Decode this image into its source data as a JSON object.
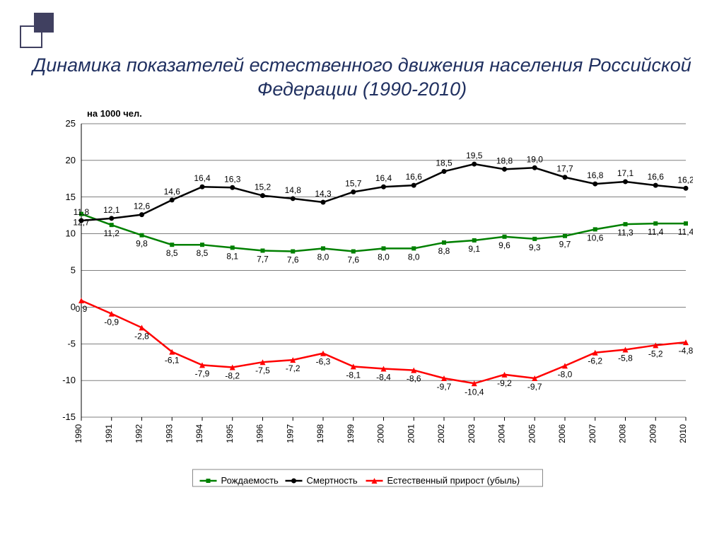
{
  "title": "Динамика показателей естественного движения населения Российской Федерации (1990-2010)",
  "chart": {
    "type": "line",
    "ylabel": "на 1000 чел.",
    "ylim": [
      -15,
      25
    ],
    "ytick_step": 5,
    "yticks": [
      -15,
      -10,
      -5,
      0,
      5,
      10,
      15,
      20,
      25
    ],
    "years": [
      1990,
      1991,
      1992,
      1993,
      1994,
      1995,
      1996,
      1997,
      1998,
      1999,
      2000,
      2001,
      2002,
      2003,
      2004,
      2005,
      2006,
      2007,
      2008,
      2009,
      2010
    ],
    "series": [
      {
        "name": "Рождаемость",
        "color": "#008000",
        "marker": "square",
        "values": [
          12.7,
          11.2,
          9.8,
          8.5,
          8.5,
          8.1,
          7.7,
          7.6,
          8.0,
          7.6,
          8.0,
          8.0,
          8.8,
          9.1,
          9.6,
          9.3,
          9.7,
          10.6,
          11.3,
          11.4,
          11.4
        ],
        "label_pos": "below"
      },
      {
        "name": "Смертность",
        "color": "#000000",
        "marker": "circle",
        "values": [
          11.8,
          12.1,
          12.6,
          14.6,
          16.4,
          16.3,
          15.2,
          14.8,
          14.3,
          15.7,
          16.4,
          16.6,
          18.5,
          19.5,
          18.8,
          19.0,
          17.7,
          16.8,
          17.1,
          16.6,
          16.2
        ],
        "label_pos": "above"
      },
      {
        "name": "Естественный прирост (убыль)",
        "color": "#ff0000",
        "marker": "triangle",
        "values": [
          0.9,
          -0.9,
          -2.8,
          -6.1,
          -7.9,
          -8.2,
          -7.5,
          -7.2,
          -6.3,
          -8.1,
          -8.4,
          -8.6,
          -9.7,
          -10.4,
          -9.2,
          -9.7,
          -8.0,
          -6.2,
          -5.8,
          -5.2,
          -4.8
        ],
        "label_pos": "below"
      }
    ],
    "background_color": "#ffffff",
    "grid_color": "#000000",
    "line_width": 2.5,
    "marker_size": 6,
    "legend_position": "bottom"
  }
}
